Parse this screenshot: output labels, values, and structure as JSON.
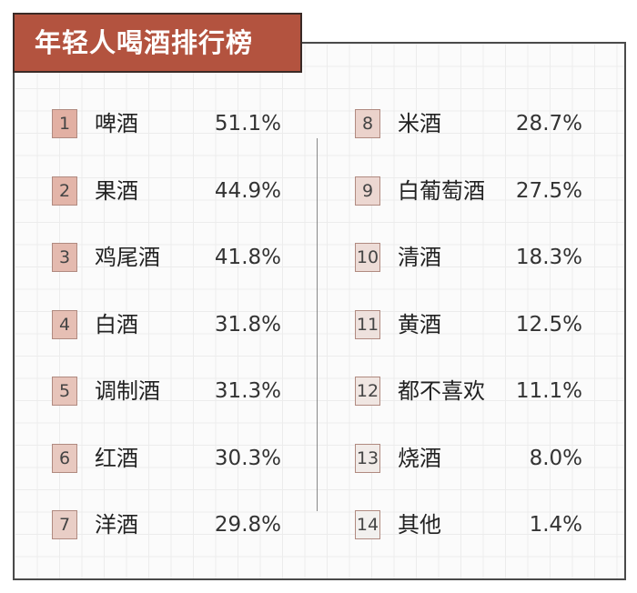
{
  "title": "年轻人喝酒排行榜",
  "items": [
    {
      "rank": "1",
      "name": "啤酒",
      "value": "51.1%"
    },
    {
      "rank": "2",
      "name": "果酒",
      "value": "44.9%"
    },
    {
      "rank": "3",
      "name": "鸡尾酒",
      "value": "41.8%"
    },
    {
      "rank": "4",
      "name": "白酒",
      "value": "31.8%"
    },
    {
      "rank": "5",
      "name": "调制酒",
      "value": "31.3%"
    },
    {
      "rank": "6",
      "name": "红酒",
      "value": "30.3%"
    },
    {
      "rank": "7",
      "name": "洋酒",
      "value": "29.8%"
    },
    {
      "rank": "8",
      "name": "米酒",
      "value": "28.7%"
    },
    {
      "rank": "9",
      "name": "白葡萄酒",
      "value": "27.5%"
    },
    {
      "rank": "10",
      "name": "清酒",
      "value": "18.3%"
    },
    {
      "rank": "11",
      "name": "黄酒",
      "value": "12.5%"
    },
    {
      "rank": "12",
      "name": "都不喜欢",
      "value": "11.1%"
    },
    {
      "rank": "13",
      "name": "烧酒",
      "value": "8.0%"
    },
    {
      "rank": "14",
      "name": "其他",
      "value": "1.4%"
    }
  ]
}
